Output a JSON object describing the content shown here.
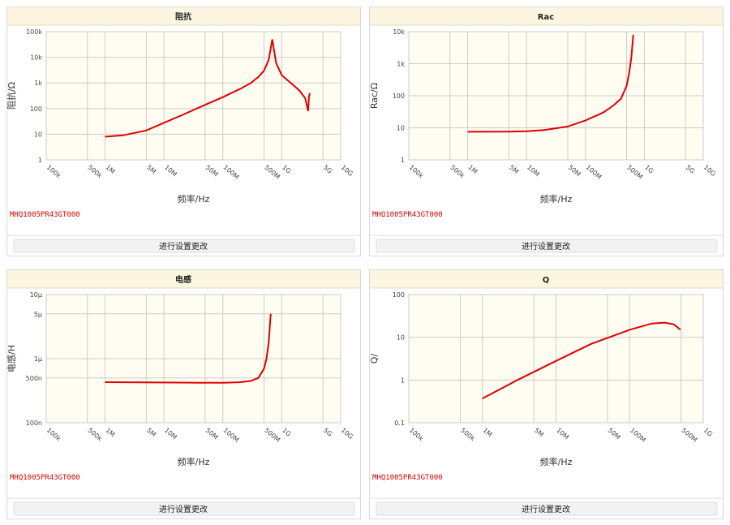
{
  "chart_data": [
    {
      "type": "line",
      "title": "阻抗",
      "x_label": "频率/Hz",
      "y_label": "阻抗/Ω",
      "log_x": true,
      "log_y": true,
      "grid": true,
      "color": "#e00000",
      "x": [
        1000000,
        2000000,
        5000000,
        10000000,
        20000000,
        50000000,
        100000000,
        200000000,
        300000000,
        400000000,
        500000000,
        600000000,
        690000000,
        800000000,
        1000000000,
        1500000000,
        2000000000,
        2500000000,
        2800000000,
        2900000000,
        3000000000
      ],
      "values": [
        8,
        9,
        14,
        28,
        55,
        140,
        280,
        600,
        1000,
        1700,
        3000,
        8000,
        50000,
        6000,
        2000,
        900,
        500,
        250,
        80,
        300,
        400
      ],
      "xlim": [
        100000,
        10000000000
      ],
      "xticks": [
        {
          "value": 100000,
          "label": "100k"
        },
        {
          "value": 500000,
          "label": "500k"
        },
        {
          "value": 1000000,
          "label": "1M"
        },
        {
          "value": 5000000,
          "label": "5M"
        },
        {
          "value": 10000000,
          "label": "10M"
        },
        {
          "value": 50000000,
          "label": "50M"
        },
        {
          "value": 100000000,
          "label": "100M"
        },
        {
          "value": 500000000,
          "label": "500M"
        },
        {
          "value": 1000000000,
          "label": "1G"
        },
        {
          "value": 5000000000,
          "label": "5G"
        },
        {
          "value": 10000000000,
          "label": "10G"
        }
      ],
      "ylim": [
        1,
        100000
      ],
      "yticks": [
        1,
        10,
        100,
        {
          "value": 1000,
          "label": "1k"
        },
        {
          "value": 10000,
          "label": "10k"
        },
        {
          "value": 100000,
          "label": "100k"
        }
      ]
    },
    {
      "type": "line",
      "title": "Rac",
      "x_label": "频率/Hz",
      "y_label": "Rac/Ω",
      "log_x": true,
      "log_y": true,
      "grid": true,
      "color": "#e00000",
      "x": [
        1000000,
        5000000,
        10000000,
        20000000,
        50000000,
        100000000,
        200000000,
        300000000,
        400000000,
        500000000,
        550000000,
        600000000,
        650000000
      ],
      "values": [
        7.5,
        7.6,
        7.8,
        8.5,
        11,
        17,
        30,
        50,
        80,
        200,
        500,
        1500,
        8000
      ],
      "xlim": [
        100000,
        10000000000
      ],
      "xticks": [
        {
          "value": 100000,
          "label": "100k"
        },
        {
          "value": 500000,
          "label": "500k"
        },
        {
          "value": 1000000,
          "label": "1M"
        },
        {
          "value": 5000000,
          "label": "5M"
        },
        {
          "value": 10000000,
          "label": "10M"
        },
        {
          "value": 50000000,
          "label": "50M"
        },
        {
          "value": 100000000,
          "label": "100M"
        },
        {
          "value": 500000000,
          "label": "500M"
        },
        {
          "value": 1000000000,
          "label": "1G"
        },
        {
          "value": 5000000000,
          "label": "5G"
        },
        {
          "value": 10000000000,
          "label": "10G"
        }
      ],
      "ylim": [
        1,
        10000
      ],
      "yticks": [
        1,
        10,
        100,
        {
          "value": 1000,
          "label": "1k"
        },
        {
          "value": 10000,
          "label": "10k"
        }
      ]
    },
    {
      "type": "line",
      "title": "电感",
      "x_label": "频率/Hz",
      "y_label": "电感/H",
      "log_x": true,
      "log_y": true,
      "grid": true,
      "color": "#e00000",
      "x": [
        1000000,
        10000000,
        100000000,
        200000000,
        300000000,
        400000000,
        500000000,
        550000000,
        600000000,
        650000000
      ],
      "values": [
        4.3e-07,
        4.25e-07,
        4.2e-07,
        4.3e-07,
        4.5e-07,
        5e-07,
        7e-07,
        1e-06,
        1.8e-06,
        5e-06
      ],
      "xlim": [
        100000,
        10000000000
      ],
      "xticks": [
        {
          "value": 100000,
          "label": "100k"
        },
        {
          "value": 500000,
          "label": "500k"
        },
        {
          "value": 1000000,
          "label": "1M"
        },
        {
          "value": 5000000,
          "label": "5M"
        },
        {
          "value": 10000000,
          "label": "10M"
        },
        {
          "value": 50000000,
          "label": "50M"
        },
        {
          "value": 100000000,
          "label": "100M"
        },
        {
          "value": 500000000,
          "label": "500M"
        },
        {
          "value": 1000000000,
          "label": "1G"
        },
        {
          "value": 5000000000,
          "label": "5G"
        },
        {
          "value": 10000000000,
          "label": "10G"
        }
      ],
      "ylim": [
        1e-07,
        1e-05
      ],
      "yticks": [
        {
          "value": 1e-07,
          "label": "100n"
        },
        {
          "value": 5e-07,
          "label": "500n"
        },
        {
          "value": 1e-06,
          "label": "1µ"
        },
        {
          "value": 5e-06,
          "label": "5µ"
        },
        {
          "value": 1e-05,
          "label": "10µ"
        }
      ]
    },
    {
      "type": "line",
      "title": "Q",
      "x_label": "频率/Hz",
      "y_label": "Q/",
      "log_x": true,
      "log_y": true,
      "grid": true,
      "color": "#e00000",
      "x": [
        1000000,
        3000000,
        10000000,
        30000000,
        100000000,
        200000000,
        300000000,
        400000000,
        490000000
      ],
      "values": [
        0.37,
        1,
        2.8,
        7,
        15,
        21,
        22,
        20,
        15
      ],
      "xlim": [
        100000,
        1000000000
      ],
      "xticks": [
        {
          "value": 100000,
          "label": "100k"
        },
        {
          "value": 500000,
          "label": "500k"
        },
        {
          "value": 1000000,
          "label": "1M"
        },
        {
          "value": 5000000,
          "label": "5M"
        },
        {
          "value": 10000000,
          "label": "10M"
        },
        {
          "value": 50000000,
          "label": "50M"
        },
        {
          "value": 100000000,
          "label": "100M"
        },
        {
          "value": 500000000,
          "label": "500M"
        },
        {
          "value": 1000000000,
          "label": "1G"
        }
      ],
      "ylim": [
        0.1,
        100
      ],
      "yticks": [
        0.1,
        1,
        10,
        100
      ]
    }
  ],
  "panels": [
    {
      "note": "MHQ1005PR43GT000",
      "button": "进行设置更改"
    },
    {
      "note": "MHQ1005PR43GT000",
      "button": "进行设置更改"
    },
    {
      "note": "MHQ1005PR43GT000",
      "button": "进行设置更改"
    },
    {
      "note": "MHQ1005PR43GT000",
      "button": "进行设置更改"
    }
  ]
}
